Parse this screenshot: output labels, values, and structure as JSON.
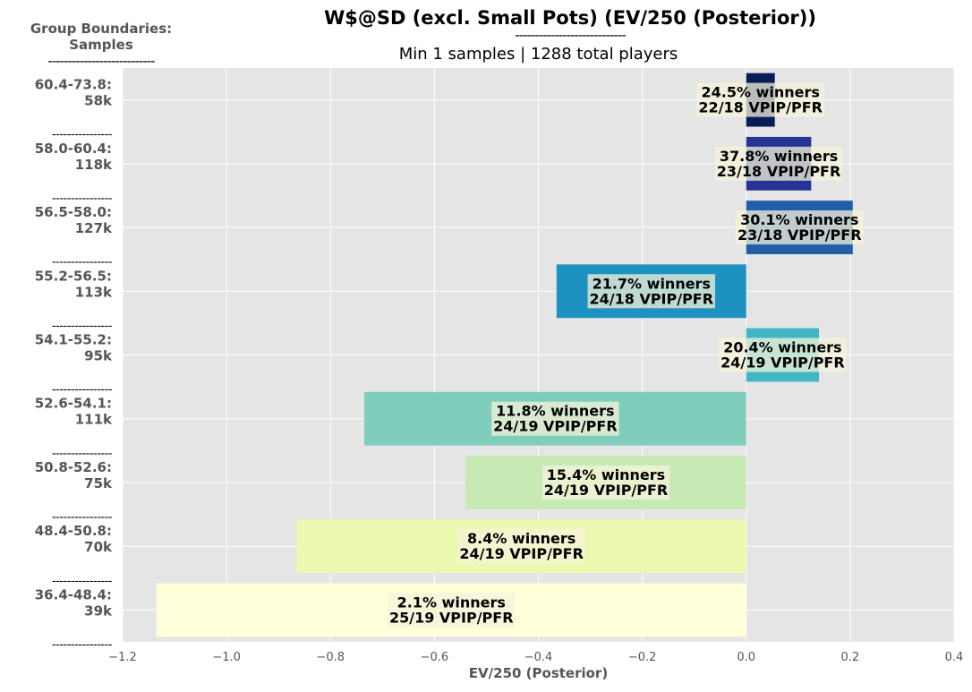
{
  "title": "W$@SD (excl. Small Pots) (EV/250 (Posterior))",
  "title_rule": "----------------------------",
  "subtitle": "Min 1 samples | 1288 total players",
  "group_heading": {
    "line1": "Group Boundaries:",
    "line2": "Samples",
    "rule": "---------------------------"
  },
  "separator": "----------------",
  "colors": {
    "plot_background": "#e5e5e5",
    "grid": "#ffffff",
    "label_box": "#f5f3da",
    "category_label": "#555555"
  },
  "chart_data": {
    "type": "bar",
    "orientation": "horizontal",
    "xlabel": "EV/250 (Posterior)",
    "xlim": [
      -1.2,
      0.4
    ],
    "xticks": [
      -1.2,
      -1.0,
      -0.8,
      -0.6,
      -0.4,
      -0.2,
      0.0,
      0.2,
      0.4
    ],
    "xtick_labels": [
      "−1.2",
      "−1.0",
      "−0.8",
      "−0.6",
      "−0.4",
      "−0.2",
      "0.0",
      "0.2",
      "0.4"
    ],
    "grid": true,
    "bars": [
      {
        "range": "60.4-73.8:",
        "samples": "58k",
        "value": 0.055,
        "winners": "24.5% winners",
        "vpip_pfr": "22/18 VPIP/PFR",
        "color": "#081d58"
      },
      {
        "range": "58.0-60.4:",
        "samples": "118k",
        "value": 0.125,
        "winners": "37.8% winners",
        "vpip_pfr": "23/18 VPIP/PFR",
        "color": "#253494"
      },
      {
        "range": "56.5-58.0:",
        "samples": "127k",
        "value": 0.205,
        "winners": "30.1% winners",
        "vpip_pfr": "23/18 VPIP/PFR",
        "color": "#225ea8"
      },
      {
        "range": "55.2-56.5:",
        "samples": "113k",
        "value": -0.365,
        "winners": "21.7% winners",
        "vpip_pfr": "24/18 VPIP/PFR",
        "color": "#1d91c0"
      },
      {
        "range": "54.1-55.2:",
        "samples": "95k",
        "value": 0.14,
        "winners": "20.4% winners",
        "vpip_pfr": "24/19 VPIP/PFR",
        "color": "#41b6c4"
      },
      {
        "range": "52.6-54.1:",
        "samples": "111k",
        "value": -0.735,
        "winners": "11.8% winners",
        "vpip_pfr": "24/19 VPIP/PFR",
        "color": "#7fcdbb"
      },
      {
        "range": "50.8-52.6:",
        "samples": "75k",
        "value": -0.54,
        "winners": "15.4% winners",
        "vpip_pfr": "24/19 VPIP/PFR",
        "color": "#c7e9b4"
      },
      {
        "range": "48.4-50.8:",
        "samples": "70k",
        "value": -0.865,
        "winners": "8.4% winners",
        "vpip_pfr": "24/19 VPIP/PFR",
        "color": "#edf8b1"
      },
      {
        "range": "36.4-48.4:",
        "samples": "39k",
        "value": -1.135,
        "winners": "2.1% winners",
        "vpip_pfr": "25/19 VPIP/PFR",
        "color": "#ffffd9"
      }
    ]
  }
}
